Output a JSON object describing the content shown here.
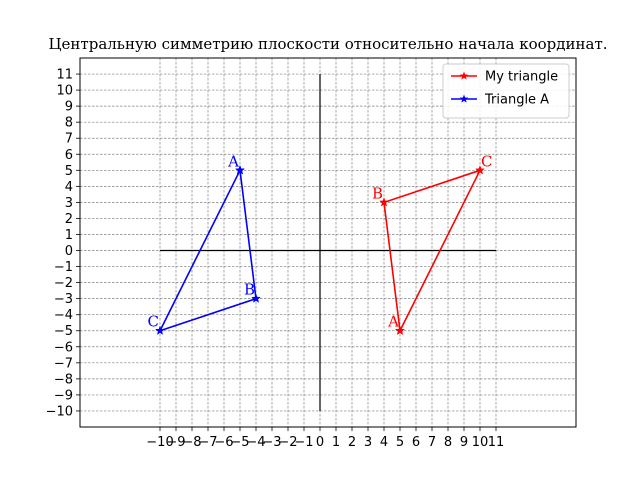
{
  "chart_data": {
    "type": "line",
    "title": "Центральную симметрию плоскости относительно начала координат.",
    "xlim": [
      -15,
      16
    ],
    "ylim": [
      -11,
      12
    ],
    "x_ticks": [
      -10,
      -9,
      -8,
      -7,
      -6,
      -5,
      -4,
      -3,
      -2,
      -1,
      0,
      1,
      2,
      3,
      4,
      5,
      6,
      7,
      8,
      9,
      10,
      11
    ],
    "y_ticks": [
      -10,
      -9,
      -8,
      -7,
      -6,
      -5,
      -4,
      -3,
      -2,
      -1,
      0,
      1,
      2,
      3,
      4,
      5,
      6,
      7,
      8,
      9,
      10,
      11
    ],
    "grid": true,
    "legend_position": "top-right",
    "axis_lines": {
      "horizontal": {
        "y": 0,
        "x_from": -10,
        "x_to": 11
      },
      "vertical": {
        "x": 0,
        "y_from": -10,
        "y_to": 11
      }
    },
    "series": [
      {
        "name": "My triangle",
        "color": "#ff0000",
        "marker": "star",
        "points": [
          {
            "label": "A",
            "x": 5,
            "y": -5
          },
          {
            "label": "B",
            "x": 4,
            "y": 3
          },
          {
            "label": "C",
            "x": 10,
            "y": 5
          },
          {
            "label": "",
            "x": 5,
            "y": -5
          }
        ]
      },
      {
        "name": "Triangle A",
        "color": "#0000ff",
        "marker": "star",
        "points": [
          {
            "label": "A",
            "x": -5,
            "y": 5
          },
          {
            "label": "B",
            "x": -4,
            "y": -3
          },
          {
            "label": "C",
            "x": -10,
            "y": -5
          },
          {
            "label": "",
            "x": -5,
            "y": 5
          }
        ]
      }
    ]
  }
}
